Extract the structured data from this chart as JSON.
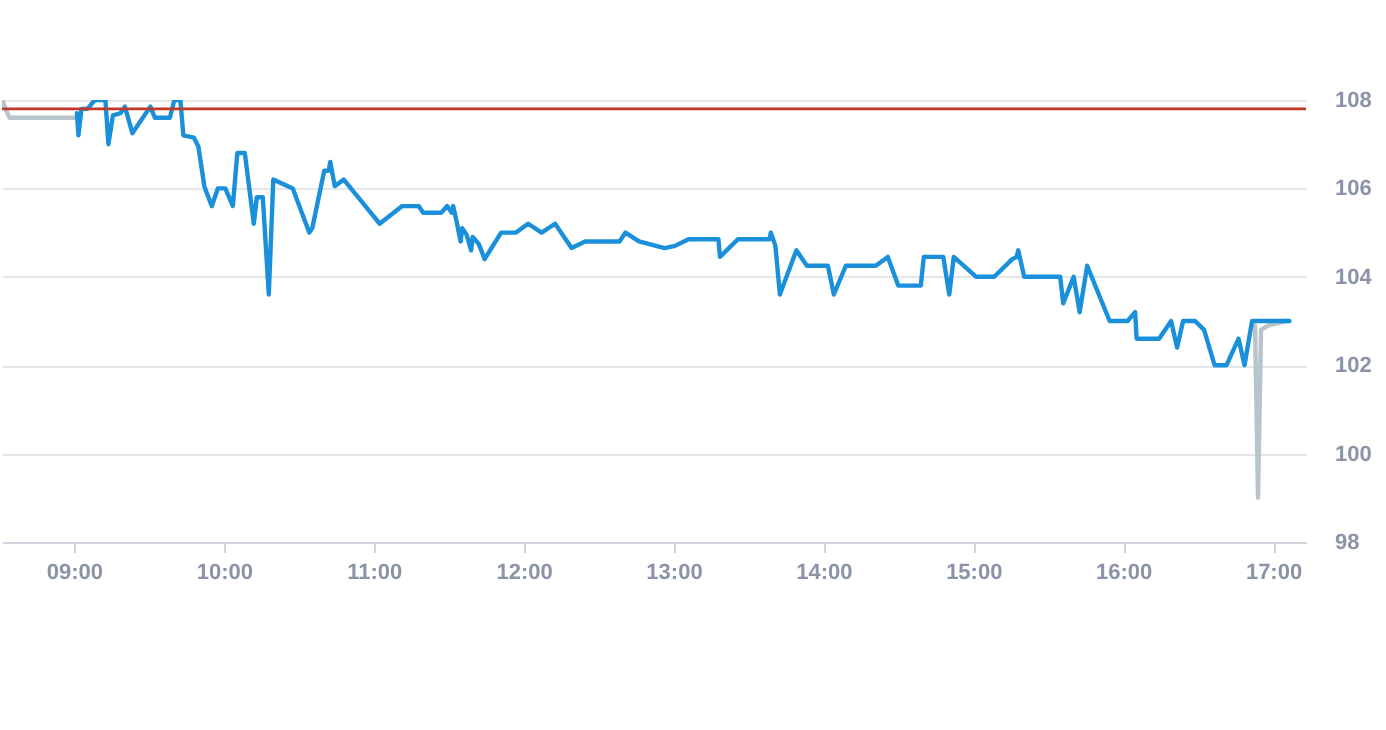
{
  "chart_data": {
    "type": "line",
    "xlim": [
      8.52,
      17.22
    ],
    "ylim": [
      98,
      108
    ],
    "xticks": [
      {
        "value": 9,
        "label": "09:00"
      },
      {
        "value": 10,
        "label": "10:00"
      },
      {
        "value": 11,
        "label": "11:00"
      },
      {
        "value": 12,
        "label": "12:00"
      },
      {
        "value": 13,
        "label": "13:00"
      },
      {
        "value": 14,
        "label": "14:00"
      },
      {
        "value": 15,
        "label": "15:00"
      },
      {
        "value": 16,
        "label": "16:00"
      },
      {
        "value": 17,
        "label": "17:00"
      }
    ],
    "yticks": [
      98,
      100,
      102,
      104,
      106,
      108
    ],
    "grid": "y",
    "marker": "none",
    "line_style": "solid",
    "ref_lines": [
      {
        "axis": "y",
        "value": 107.8,
        "color": "#c0392b"
      }
    ],
    "series": [
      {
        "color": "#b8c4cc",
        "x": [
          8.52,
          8.57,
          9.01,
          16.87,
          16.88,
          16.9,
          16.92,
          16.97,
          17.09
        ],
        "values": [
          108,
          107.6,
          107.6,
          null,
          102.9,
          99.0,
          102.8,
          102.9,
          103.0
        ]
      },
      {
        "color": "#1a90db",
        "x": [
          9.02,
          9.03,
          9.05,
          9.09,
          9.14,
          9.21,
          9.23,
          9.26,
          9.31,
          9.34,
          9.39,
          9.44,
          9.51,
          9.54,
          9.64,
          9.67,
          9.71,
          9.73,
          9.8,
          9.83,
          9.87,
          9.88,
          9.92,
          9.96,
          10.01,
          10.06,
          10.09,
          10.14,
          10.2,
          10.22,
          10.26,
          10.3,
          10.33,
          10.46,
          10.57,
          10.59,
          10.67,
          10.7,
          10.71,
          10.74,
          10.8,
          10.92,
          11.04,
          11.19,
          11.3,
          11.33,
          11.45,
          11.49,
          11.52,
          11.53,
          11.55,
          11.58,
          11.59,
          11.62,
          11.65,
          11.66,
          11.7,
          11.74,
          11.85,
          11.95,
          12.03,
          12.12,
          12.21,
          12.32,
          12.41,
          12.64,
          12.68,
          12.77,
          12.94,
          13.01,
          13.1,
          13.3,
          13.31,
          13.43,
          13.64,
          13.65,
          13.68,
          13.71,
          13.82,
          13.89,
          14.03,
          14.07,
          14.15,
          14.35,
          14.43,
          14.5,
          14.65,
          14.67,
          14.8,
          14.84,
          14.87,
          15.02,
          15.14,
          15.26,
          15.29,
          15.3,
          15.34,
          15.58,
          15.6,
          15.67,
          15.71,
          15.76,
          15.91,
          16.03,
          16.08,
          16.09,
          16.24,
          16.32,
          16.36,
          16.4,
          16.48,
          16.54,
          16.61,
          16.69,
          16.77,
          16.81,
          16.86,
          17.11
        ],
        "values": [
          107.7,
          107.2,
          107.8,
          107.8,
          108,
          108,
          107.0,
          107.65,
          107.7,
          107.85,
          107.25,
          107.5,
          107.85,
          107.6,
          107.6,
          108,
          108,
          107.2,
          107.15,
          106.95,
          106.05,
          105.95,
          105.6,
          106,
          106,
          105.6,
          106.8,
          106.8,
          105.2,
          105.8,
          105.8,
          103.6,
          106.2,
          106,
          105.0,
          105.1,
          106.4,
          106.4,
          106.6,
          106.05,
          106.2,
          105.7,
          105.2,
          105.6,
          105.6,
          105.45,
          105.45,
          105.6,
          105.45,
          105.6,
          105.3,
          104.8,
          105.1,
          104.95,
          104.6,
          104.9,
          104.75,
          104.4,
          105.0,
          105.0,
          105.2,
          105.0,
          105.2,
          104.65,
          104.8,
          104.8,
          105.0,
          104.8,
          104.65,
          104.7,
          104.85,
          104.85,
          104.45,
          104.85,
          104.85,
          105.0,
          104.7,
          103.6,
          104.6,
          104.25,
          104.25,
          103.6,
          104.25,
          104.25,
          104.45,
          103.8,
          103.8,
          104.45,
          104.45,
          103.6,
          104.45,
          104.0,
          104.0,
          104.4,
          104.45,
          104.6,
          104.0,
          104.0,
          103.4,
          104.0,
          103.2,
          104.25,
          103.0,
          103.0,
          103.2,
          102.6,
          102.6,
          103.0,
          102.4,
          103.0,
          103.0,
          102.8,
          102.0,
          102.0,
          102.6,
          102.0,
          103.0,
          103.0
        ]
      }
    ]
  }
}
